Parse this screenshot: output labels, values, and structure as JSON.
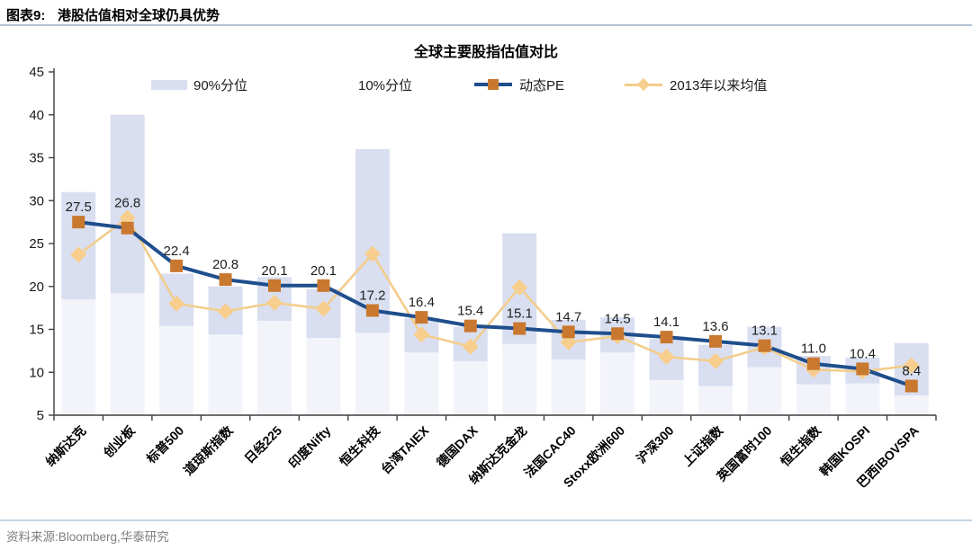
{
  "header": {
    "figure_label": "图表9:",
    "figure_title": "港股估值相对全球仍具优势"
  },
  "footer": {
    "source": "资料来源:Bloomberg,华泰研究"
  },
  "chart_data": {
    "type": "combo",
    "title": "全球主要股指估值对比",
    "categories": [
      "纳斯达克",
      "创业板",
      "标普500",
      "道琼斯指数",
      "日经225",
      "印度Nifty",
      "恒生科技",
      "台湾TAIEX",
      "德国DAX",
      "纳斯达克金龙",
      "法国CAC40",
      "Stoxx欧洲600",
      "沪深300",
      "上证指数",
      "英国富时100",
      "恒生指数",
      "韩国KOSPI",
      "巴西IBOVSPA"
    ],
    "ylim": [
      5,
      45
    ],
    "yticks": [
      5,
      10,
      15,
      20,
      25,
      30,
      35,
      40,
      45
    ],
    "legend_position": "top",
    "grid": false,
    "legend": [
      {
        "label": "90%分位",
        "swatch": "bar"
      },
      {
        "label": "10%分位",
        "swatch": "none"
      },
      {
        "label": "动态PE",
        "swatch": "line-square"
      },
      {
        "label": "2013年以来均值",
        "swatch": "line-diamond"
      }
    ],
    "colors": {
      "range_bar": "#d9dff0",
      "range_bar_faint": "#f2f4fa",
      "pe_line": "#1f4e8c",
      "pe_marker": "#c9782f",
      "mean_line": "#f3cd8c",
      "mean_marker": "#f7ce8d",
      "axis": "#3f3f3f",
      "label_text": "#1f1f1f"
    },
    "series": [
      {
        "name": "90%分位",
        "type": "bar_range_top",
        "values": [
          31.0,
          40.0,
          21.5,
          20.0,
          21.1,
          19.7,
          36.0,
          16.3,
          15.3,
          26.2,
          16.1,
          16.4,
          13.9,
          13.2,
          15.3,
          11.9,
          11.7,
          13.4
        ]
      },
      {
        "name": "10%分位",
        "type": "bar_range_bottom",
        "values": [
          18.5,
          19.2,
          15.4,
          14.4,
          16.0,
          14.0,
          14.6,
          12.3,
          11.3,
          13.3,
          11.5,
          12.3,
          9.1,
          8.4,
          10.6,
          8.6,
          8.7,
          7.3
        ]
      },
      {
        "name": "动态PE",
        "type": "line",
        "marker": "square",
        "show_labels": true,
        "values": [
          27.5,
          26.8,
          22.4,
          20.8,
          20.1,
          20.1,
          17.2,
          16.4,
          15.4,
          15.1,
          14.7,
          14.5,
          14.1,
          13.6,
          13.1,
          11.0,
          10.4,
          8.4
        ]
      },
      {
        "name": "2013年以来均值",
        "type": "line",
        "marker": "diamond",
        "show_labels": false,
        "values": [
          23.7,
          28.0,
          18.0,
          17.1,
          18.1,
          17.4,
          23.8,
          14.4,
          13.0,
          19.9,
          13.5,
          14.2,
          11.8,
          11.3,
          12.9,
          10.3,
          10.1,
          10.8
        ]
      }
    ]
  }
}
